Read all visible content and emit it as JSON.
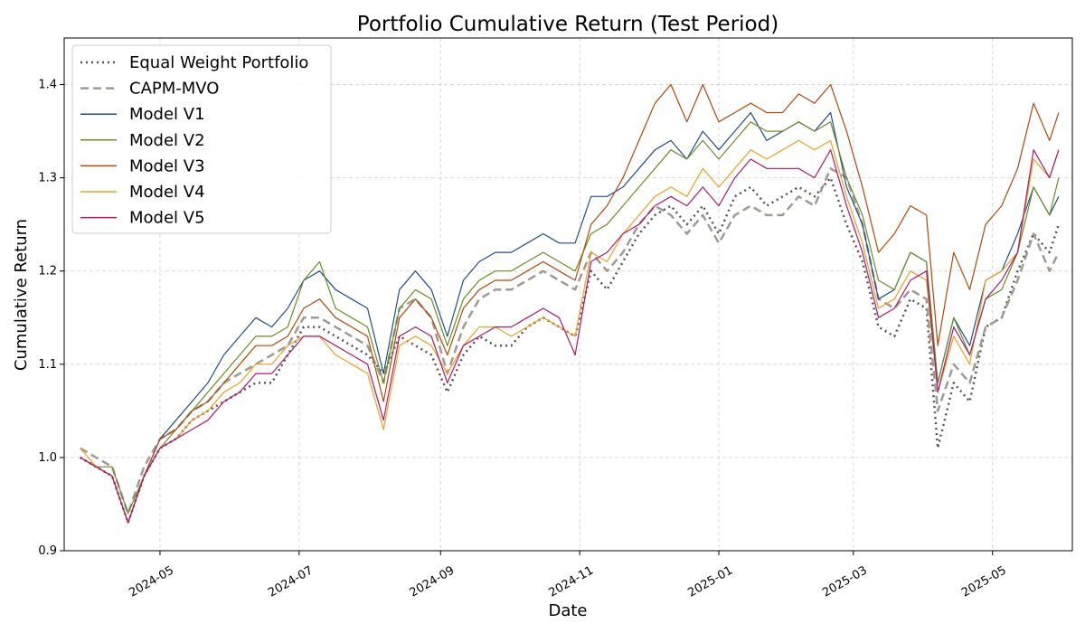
{
  "chart_data": {
    "type": "line",
    "title": "Portfolio Cumulative Return (Test Period)",
    "xlabel": "Date",
    "ylabel": "Cumulative Return",
    "xlim": [
      "2024-03-20",
      "2025-06-05"
    ],
    "ylim": [
      0.9,
      1.45
    ],
    "yticks": [
      0.9,
      1.0,
      1.1,
      1.2,
      1.3,
      1.4
    ],
    "ytick_labels": [
      "0.9",
      "1.0",
      "1.1",
      "1.2",
      "1.3",
      "1.4"
    ],
    "xticks": [
      "2024-05-01",
      "2024-07-01",
      "2024-09-01",
      "2024-11-01",
      "2025-01-01",
      "2025-03-01",
      "2025-05-01"
    ],
    "xtick_labels": [
      "2024-05",
      "2024-07",
      "2024-09",
      "2024-11",
      "2025-01",
      "2025-03",
      "2025-05"
    ],
    "grid": true,
    "legend_position": "top-left",
    "x": [
      "2024-03-27",
      "2024-04-03",
      "2024-04-10",
      "2024-04-17",
      "2024-04-24",
      "2024-05-01",
      "2024-05-08",
      "2024-05-15",
      "2024-05-22",
      "2024-05-29",
      "2024-06-05",
      "2024-06-12",
      "2024-06-19",
      "2024-06-26",
      "2024-07-03",
      "2024-07-10",
      "2024-07-17",
      "2024-07-24",
      "2024-07-31",
      "2024-08-07",
      "2024-08-14",
      "2024-08-21",
      "2024-08-28",
      "2024-09-04",
      "2024-09-11",
      "2024-09-18",
      "2024-09-25",
      "2024-10-02",
      "2024-10-09",
      "2024-10-16",
      "2024-10-23",
      "2024-10-30",
      "2024-11-06",
      "2024-11-13",
      "2024-11-20",
      "2024-11-27",
      "2024-12-04",
      "2024-12-11",
      "2024-12-18",
      "2024-12-25",
      "2025-01-01",
      "2025-01-08",
      "2025-01-15",
      "2025-01-22",
      "2025-01-29",
      "2025-02-05",
      "2025-02-12",
      "2025-02-19",
      "2025-02-26",
      "2025-03-05",
      "2025-03-12",
      "2025-03-19",
      "2025-03-26",
      "2025-04-02",
      "2025-04-07",
      "2025-04-14",
      "2025-04-21",
      "2025-04-28",
      "2025-05-05",
      "2025-05-12",
      "2025-05-19",
      "2025-05-26",
      "2025-05-30"
    ],
    "series": [
      {
        "name": "Equal Weight Portfolio",
        "color": "#555555",
        "style": "dotted",
        "values": [
          1.0,
          0.99,
          0.98,
          0.93,
          0.98,
          1.01,
          1.02,
          1.04,
          1.05,
          1.06,
          1.07,
          1.08,
          1.08,
          1.11,
          1.14,
          1.14,
          1.13,
          1.12,
          1.11,
          1.09,
          1.13,
          1.12,
          1.11,
          1.07,
          1.11,
          1.13,
          1.12,
          1.12,
          1.14,
          1.15,
          1.14,
          1.13,
          1.2,
          1.18,
          1.21,
          1.24,
          1.26,
          1.27,
          1.25,
          1.27,
          1.24,
          1.28,
          1.29,
          1.27,
          1.28,
          1.29,
          1.28,
          1.3,
          1.25,
          1.21,
          1.14,
          1.13,
          1.17,
          1.16,
          1.01,
          1.08,
          1.06,
          1.14,
          1.15,
          1.2,
          1.24,
          1.22,
          1.25
        ]
      },
      {
        "name": "CAPM-MVO",
        "color": "#a09a94",
        "style": "dashed",
        "values": [
          1.01,
          1.0,
          0.99,
          0.94,
          0.99,
          1.02,
          1.03,
          1.05,
          1.06,
          1.08,
          1.09,
          1.1,
          1.11,
          1.12,
          1.15,
          1.15,
          1.14,
          1.13,
          1.12,
          1.08,
          1.16,
          1.17,
          1.15,
          1.09,
          1.14,
          1.17,
          1.18,
          1.18,
          1.19,
          1.2,
          1.19,
          1.18,
          1.22,
          1.2,
          1.22,
          1.25,
          1.27,
          1.26,
          1.24,
          1.26,
          1.23,
          1.26,
          1.27,
          1.26,
          1.26,
          1.28,
          1.27,
          1.31,
          1.3,
          1.25,
          1.17,
          1.16,
          1.18,
          1.17,
          1.05,
          1.1,
          1.08,
          1.14,
          1.15,
          1.19,
          1.24,
          1.2,
          1.22
        ]
      },
      {
        "name": "Model V1",
        "color": "#1f4e8c",
        "style": "solid",
        "values": [
          1.0,
          0.99,
          0.98,
          0.93,
          0.98,
          1.02,
          1.04,
          1.06,
          1.08,
          1.11,
          1.13,
          1.15,
          1.14,
          1.16,
          1.19,
          1.2,
          1.18,
          1.17,
          1.16,
          1.09,
          1.18,
          1.2,
          1.18,
          1.13,
          1.19,
          1.21,
          1.22,
          1.22,
          1.23,
          1.24,
          1.23,
          1.23,
          1.28,
          1.28,
          1.29,
          1.31,
          1.33,
          1.34,
          1.32,
          1.35,
          1.33,
          1.35,
          1.37,
          1.34,
          1.35,
          1.36,
          1.35,
          1.37,
          1.29,
          1.25,
          1.17,
          1.18,
          1.22,
          1.21,
          1.08,
          1.15,
          1.12,
          1.19,
          1.2,
          1.24,
          1.29,
          1.26,
          1.28
        ]
      },
      {
        "name": "Model V2",
        "color": "#6b8e23",
        "style": "solid",
        "values": [
          1.0,
          0.99,
          0.99,
          0.94,
          0.98,
          1.01,
          1.03,
          1.05,
          1.07,
          1.09,
          1.11,
          1.13,
          1.13,
          1.14,
          1.19,
          1.21,
          1.16,
          1.15,
          1.14,
          1.08,
          1.16,
          1.18,
          1.17,
          1.12,
          1.17,
          1.19,
          1.2,
          1.2,
          1.21,
          1.22,
          1.21,
          1.2,
          1.24,
          1.25,
          1.27,
          1.29,
          1.31,
          1.33,
          1.32,
          1.34,
          1.32,
          1.34,
          1.36,
          1.35,
          1.35,
          1.36,
          1.35,
          1.36,
          1.3,
          1.26,
          1.19,
          1.18,
          1.22,
          1.21,
          1.08,
          1.15,
          1.11,
          1.17,
          1.18,
          1.22,
          1.29,
          1.26,
          1.3
        ]
      },
      {
        "name": "Model V3",
        "color": "#b5470b",
        "style": "solid",
        "values": [
          1.0,
          0.99,
          0.98,
          0.93,
          0.98,
          1.02,
          1.03,
          1.05,
          1.06,
          1.08,
          1.1,
          1.12,
          1.12,
          1.13,
          1.16,
          1.17,
          1.15,
          1.14,
          1.13,
          1.06,
          1.15,
          1.17,
          1.15,
          1.11,
          1.16,
          1.18,
          1.19,
          1.19,
          1.2,
          1.21,
          1.2,
          1.19,
          1.25,
          1.27,
          1.3,
          1.34,
          1.38,
          1.4,
          1.36,
          1.4,
          1.36,
          1.37,
          1.38,
          1.37,
          1.37,
          1.39,
          1.38,
          1.4,
          1.35,
          1.29,
          1.22,
          1.24,
          1.27,
          1.26,
          1.12,
          1.22,
          1.18,
          1.25,
          1.27,
          1.31,
          1.38,
          1.34,
          1.37
        ]
      },
      {
        "name": "Model V4",
        "color": "#f0a020",
        "style": "solid",
        "values": [
          1.01,
          0.99,
          0.98,
          0.93,
          0.98,
          1.01,
          1.02,
          1.04,
          1.05,
          1.07,
          1.08,
          1.1,
          1.1,
          1.12,
          1.13,
          1.13,
          1.11,
          1.1,
          1.09,
          1.03,
          1.12,
          1.13,
          1.12,
          1.09,
          1.12,
          1.14,
          1.14,
          1.13,
          1.14,
          1.15,
          1.14,
          1.13,
          1.22,
          1.21,
          1.24,
          1.26,
          1.28,
          1.29,
          1.28,
          1.31,
          1.29,
          1.31,
          1.33,
          1.32,
          1.33,
          1.34,
          1.33,
          1.34,
          1.28,
          1.23,
          1.16,
          1.17,
          1.2,
          1.19,
          1.07,
          1.13,
          1.1,
          1.19,
          1.2,
          1.22,
          1.32,
          1.3,
          1.33
        ]
      },
      {
        "name": "Model V5",
        "color": "#b0186e",
        "style": "solid",
        "values": [
          1.0,
          0.99,
          0.98,
          0.93,
          0.98,
          1.01,
          1.02,
          1.03,
          1.04,
          1.06,
          1.07,
          1.09,
          1.09,
          1.11,
          1.13,
          1.13,
          1.12,
          1.11,
          1.1,
          1.04,
          1.13,
          1.14,
          1.13,
          1.08,
          1.12,
          1.13,
          1.14,
          1.14,
          1.15,
          1.16,
          1.15,
          1.11,
          1.21,
          1.22,
          1.24,
          1.25,
          1.27,
          1.28,
          1.27,
          1.29,
          1.27,
          1.3,
          1.32,
          1.31,
          1.31,
          1.31,
          1.3,
          1.33,
          1.27,
          1.22,
          1.15,
          1.16,
          1.19,
          1.2,
          1.07,
          1.14,
          1.11,
          1.17,
          1.19,
          1.22,
          1.33,
          1.3,
          1.33
        ]
      }
    ]
  }
}
